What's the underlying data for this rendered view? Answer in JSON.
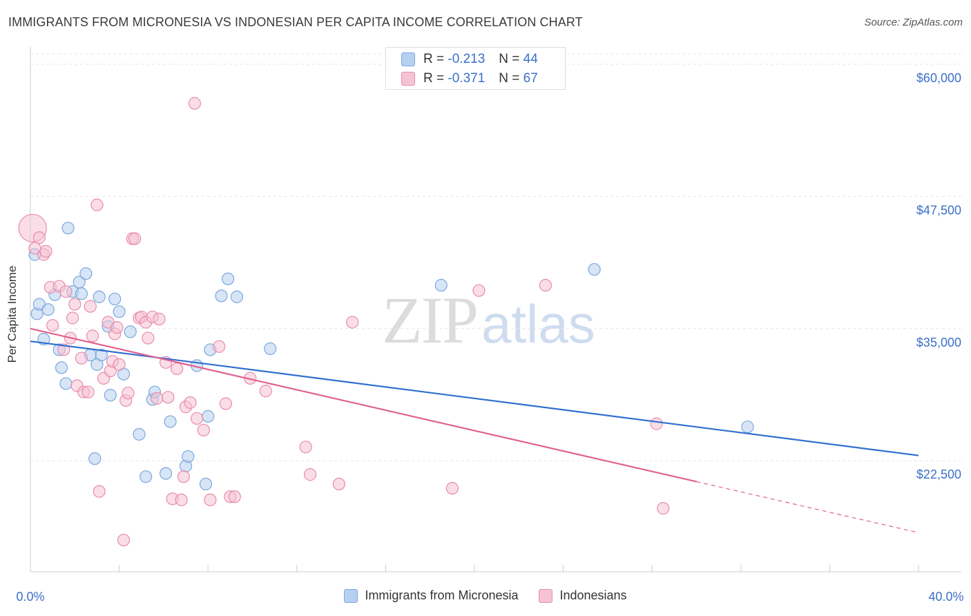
{
  "title": "IMMIGRANTS FROM MICRONESIA VS INDONESIAN PER CAPITA INCOME CORRELATION CHART",
  "source": "Source: ZipAtlas.com",
  "watermark": {
    "zip": "ZIP",
    "atlas": "atlas"
  },
  "legend_stats": [
    {
      "r_label": "R =",
      "r_value": "-0.213",
      "n_label": "N =",
      "n_value": "44"
    },
    {
      "r_label": "R =",
      "r_value": "-0.371",
      "n_label": "N =",
      "n_value": "67"
    }
  ],
  "colors": {
    "blue_fill": "#b7d0f0",
    "blue_stroke": "#7ba7dd",
    "blue_line": "#2f6fd0",
    "pink_fill": "#f6c3d3",
    "pink_stroke": "#e98aab",
    "pink_line": "#e0628f",
    "tick_label": "#3b6fc9",
    "grid": "#e6e6e6"
  },
  "chart_data": {
    "type": "scatter",
    "title": "IMMIGRANTS FROM MICRONESIA VS INDONESIAN PER CAPITA INCOME CORRELATION CHART",
    "xlabel": "",
    "ylabel": "Per Capita Income",
    "xlim": [
      0,
      40
    ],
    "ylim": [
      12000,
      61500
    ],
    "x_tick_labels": [
      "0.0%",
      "40.0%"
    ],
    "y_ticks": [
      22500,
      35000,
      47500,
      60000
    ],
    "y_tick_labels": [
      "$22,500",
      "$35,000",
      "$47,500",
      "$60,000"
    ],
    "grid": true,
    "legend": "bottom",
    "series": [
      {
        "name": "Immigrants from Micronesia",
        "color": "#b7d0f0",
        "trend": {
          "x": [
            0,
            40
          ],
          "y": [
            33800,
            23000
          ],
          "dashed_from": null
        },
        "points": [
          [
            0.2,
            42.0
          ],
          [
            0.3,
            36.4
          ],
          [
            0.4,
            37.3
          ],
          [
            0.6,
            34.0
          ],
          [
            0.8,
            36.8
          ],
          [
            1.1,
            38.2
          ],
          [
            1.3,
            33.0
          ],
          [
            1.4,
            31.3
          ],
          [
            1.6,
            29.8
          ],
          [
            1.7,
            44.5
          ],
          [
            1.9,
            38.5
          ],
          [
            2.2,
            39.4
          ],
          [
            2.3,
            38.3
          ],
          [
            2.5,
            40.2
          ],
          [
            2.7,
            32.5
          ],
          [
            2.9,
            22.7
          ],
          [
            3.0,
            31.6
          ],
          [
            3.1,
            38.0
          ],
          [
            3.2,
            32.5
          ],
          [
            3.5,
            35.2
          ],
          [
            3.6,
            28.7
          ],
          [
            3.8,
            37.8
          ],
          [
            4.0,
            36.6
          ],
          [
            4.2,
            30.7
          ],
          [
            4.5,
            34.7
          ],
          [
            4.9,
            25.0
          ],
          [
            5.2,
            21.0
          ],
          [
            5.5,
            28.3
          ],
          [
            5.6,
            29.0
          ],
          [
            6.1,
            21.3
          ],
          [
            6.3,
            26.2
          ],
          [
            7.0,
            22.0
          ],
          [
            7.1,
            22.9
          ],
          [
            7.5,
            31.5
          ],
          [
            7.9,
            20.3
          ],
          [
            8.0,
            26.7
          ],
          [
            8.1,
            33.0
          ],
          [
            8.6,
            38.1
          ],
          [
            8.9,
            39.7
          ],
          [
            9.3,
            38.0
          ],
          [
            10.8,
            33.1
          ],
          [
            18.5,
            39.1
          ],
          [
            25.4,
            40.6
          ],
          [
            32.3,
            25.7
          ]
        ]
      },
      {
        "name": "Indonesians",
        "color": "#f6c3d3",
        "trend": {
          "x": [
            0,
            40
          ],
          "y": [
            35000,
            15700
          ],
          "dashed_from": 30.0
        },
        "points": [
          [
            0.1,
            44.5
          ],
          [
            0.4,
            43.6
          ],
          [
            0.6,
            42.0
          ],
          [
            0.7,
            42.3
          ],
          [
            0.9,
            38.9
          ],
          [
            1.0,
            35.3
          ],
          [
            1.3,
            39.0
          ],
          [
            1.5,
            33.0
          ],
          [
            1.6,
            38.5
          ],
          [
            1.8,
            34.1
          ],
          [
            1.9,
            36.0
          ],
          [
            2.0,
            37.3
          ],
          [
            2.1,
            29.6
          ],
          [
            2.3,
            32.2
          ],
          [
            2.4,
            29.0
          ],
          [
            2.6,
            29.0
          ],
          [
            2.7,
            37.1
          ],
          [
            2.8,
            34.3
          ],
          [
            3.0,
            46.7
          ],
          [
            3.1,
            19.6
          ],
          [
            3.3,
            30.3
          ],
          [
            3.5,
            35.6
          ],
          [
            3.6,
            31.0
          ],
          [
            3.7,
            31.9
          ],
          [
            3.8,
            34.5
          ],
          [
            3.9,
            35.1
          ],
          [
            4.0,
            31.6
          ],
          [
            4.2,
            15.0
          ],
          [
            4.3,
            28.2
          ],
          [
            4.4,
            28.9
          ],
          [
            4.6,
            43.5
          ],
          [
            4.7,
            43.5
          ],
          [
            4.9,
            36.0
          ],
          [
            5.0,
            36.1
          ],
          [
            5.2,
            35.6
          ],
          [
            5.3,
            34.1
          ],
          [
            5.5,
            36.1
          ],
          [
            5.7,
            28.4
          ],
          [
            5.8,
            35.9
          ],
          [
            6.1,
            31.8
          ],
          [
            6.2,
            28.5
          ],
          [
            6.4,
            18.9
          ],
          [
            6.6,
            31.2
          ],
          [
            6.8,
            18.8
          ],
          [
            6.9,
            21.0
          ],
          [
            7.0,
            27.6
          ],
          [
            7.2,
            28.0
          ],
          [
            7.4,
            56.3
          ],
          [
            7.5,
            26.5
          ],
          [
            7.8,
            25.4
          ],
          [
            8.1,
            18.8
          ],
          [
            8.5,
            33.3
          ],
          [
            8.8,
            27.9
          ],
          [
            9.0,
            19.1
          ],
          [
            9.2,
            19.1
          ],
          [
            9.9,
            30.3
          ],
          [
            10.6,
            29.1
          ],
          [
            12.4,
            23.8
          ],
          [
            12.6,
            21.2
          ],
          [
            13.9,
            20.3
          ],
          [
            14.5,
            35.6
          ],
          [
            19.0,
            19.9
          ],
          [
            20.2,
            38.6
          ],
          [
            23.2,
            39.1
          ],
          [
            28.2,
            26.0
          ],
          [
            28.5,
            18.0
          ],
          [
            0.2,
            42.6
          ]
        ]
      }
    ]
  },
  "bottom_legend": [
    {
      "label": "Immigrants from Micronesia"
    },
    {
      "label": "Indonesians"
    }
  ]
}
